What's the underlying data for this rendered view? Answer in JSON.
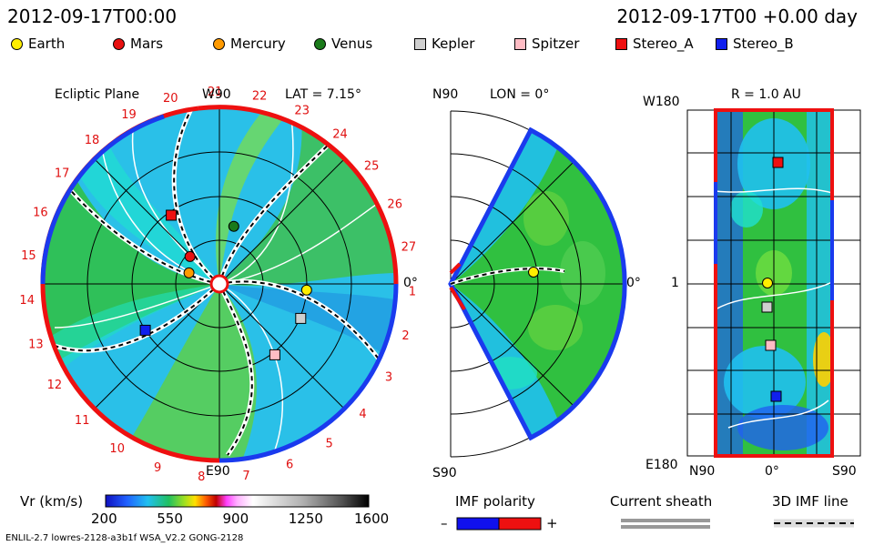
{
  "header": {
    "datetime": "2012-09-17T00:00",
    "offset": "2012-09-17T00 +0.00 day"
  },
  "legend": [
    {
      "label": "Earth",
      "color": "#ffee00",
      "shape": "circle"
    },
    {
      "label": "Mars",
      "color": "#e81010",
      "shape": "circle"
    },
    {
      "label": "Mercury",
      "color": "#ff9a00",
      "shape": "circle"
    },
    {
      "label": "Venus",
      "color": "#1a7a1a",
      "shape": "circle"
    },
    {
      "label": "Kepler",
      "color": "#cfcfcf",
      "shape": "square"
    },
    {
      "label": "Spitzer",
      "color": "#ffbcc4",
      "shape": "square"
    },
    {
      "label": "Stereo_A",
      "color": "#ee1010",
      "shape": "square"
    },
    {
      "label": "Stereo_B",
      "color": "#1020ee",
      "shape": "square"
    }
  ],
  "panels": {
    "ecliptic": {
      "title": "Ecliptic Plane",
      "lat": "LAT = 7.15°",
      "top_label": "W90",
      "bottom_label": "E90",
      "right_label": "0°"
    },
    "meridional": {
      "lon": "LON = 0°",
      "top_label": "N90",
      "bottom_label": "S90",
      "right_label": "0°"
    },
    "radial": {
      "r": "R = 1.0 AU",
      "top_label": "W180",
      "mid_label": "1",
      "bottom_label": "E180",
      "x_left": "N90",
      "x_mid": "0°",
      "x_right": "S90"
    }
  },
  "colorbar": {
    "label": "Vr (km/s)",
    "ticks": [
      "200",
      "550",
      "900",
      "1250",
      "1600"
    ]
  },
  "imf": {
    "title": "IMF polarity",
    "minus": "–",
    "plus": "+"
  },
  "current_sheath": "Current sheath",
  "imf_line": "3D IMF line",
  "footer": "ENLIL-2.7 lowres-2128-a3b1f WSA_V2.2 GONG-2128",
  "chart_data": {
    "type": "heatmap",
    "quantity": "Vr (km/s)",
    "colorbar_range": [
      200,
      1600
    ],
    "carrington_ticks": [
      "19",
      "20",
      "21",
      "22",
      "23",
      "24",
      "25",
      "26",
      "27",
      "1",
      "2",
      "3",
      "4",
      "5",
      "6",
      "7",
      "8",
      "9",
      "10",
      "11",
      "12",
      "13",
      "14",
      "15",
      "16",
      "17",
      "18"
    ],
    "bodies_ecliptic": [
      {
        "name": "Earth",
        "angle_deg": 4,
        "r_au": 1.0
      },
      {
        "name": "Mars",
        "angle_deg": -137,
        "r_au": 0.46
      },
      {
        "name": "Mercury",
        "angle_deg": 200,
        "r_au": 0.37
      },
      {
        "name": "Venus",
        "angle_deg": -76,
        "r_au": 0.68
      },
      {
        "name": "Kepler",
        "angle_deg": 23,
        "r_au": 1.01
      },
      {
        "name": "Spitzer",
        "angle_deg": 52,
        "r_au": 1.03
      },
      {
        "name": "Stereo_A",
        "angle_deg": -125,
        "r_au": 0.96
      },
      {
        "name": "Stereo_B",
        "angle_deg": 148,
        "r_au": 1.0
      }
    ]
  }
}
